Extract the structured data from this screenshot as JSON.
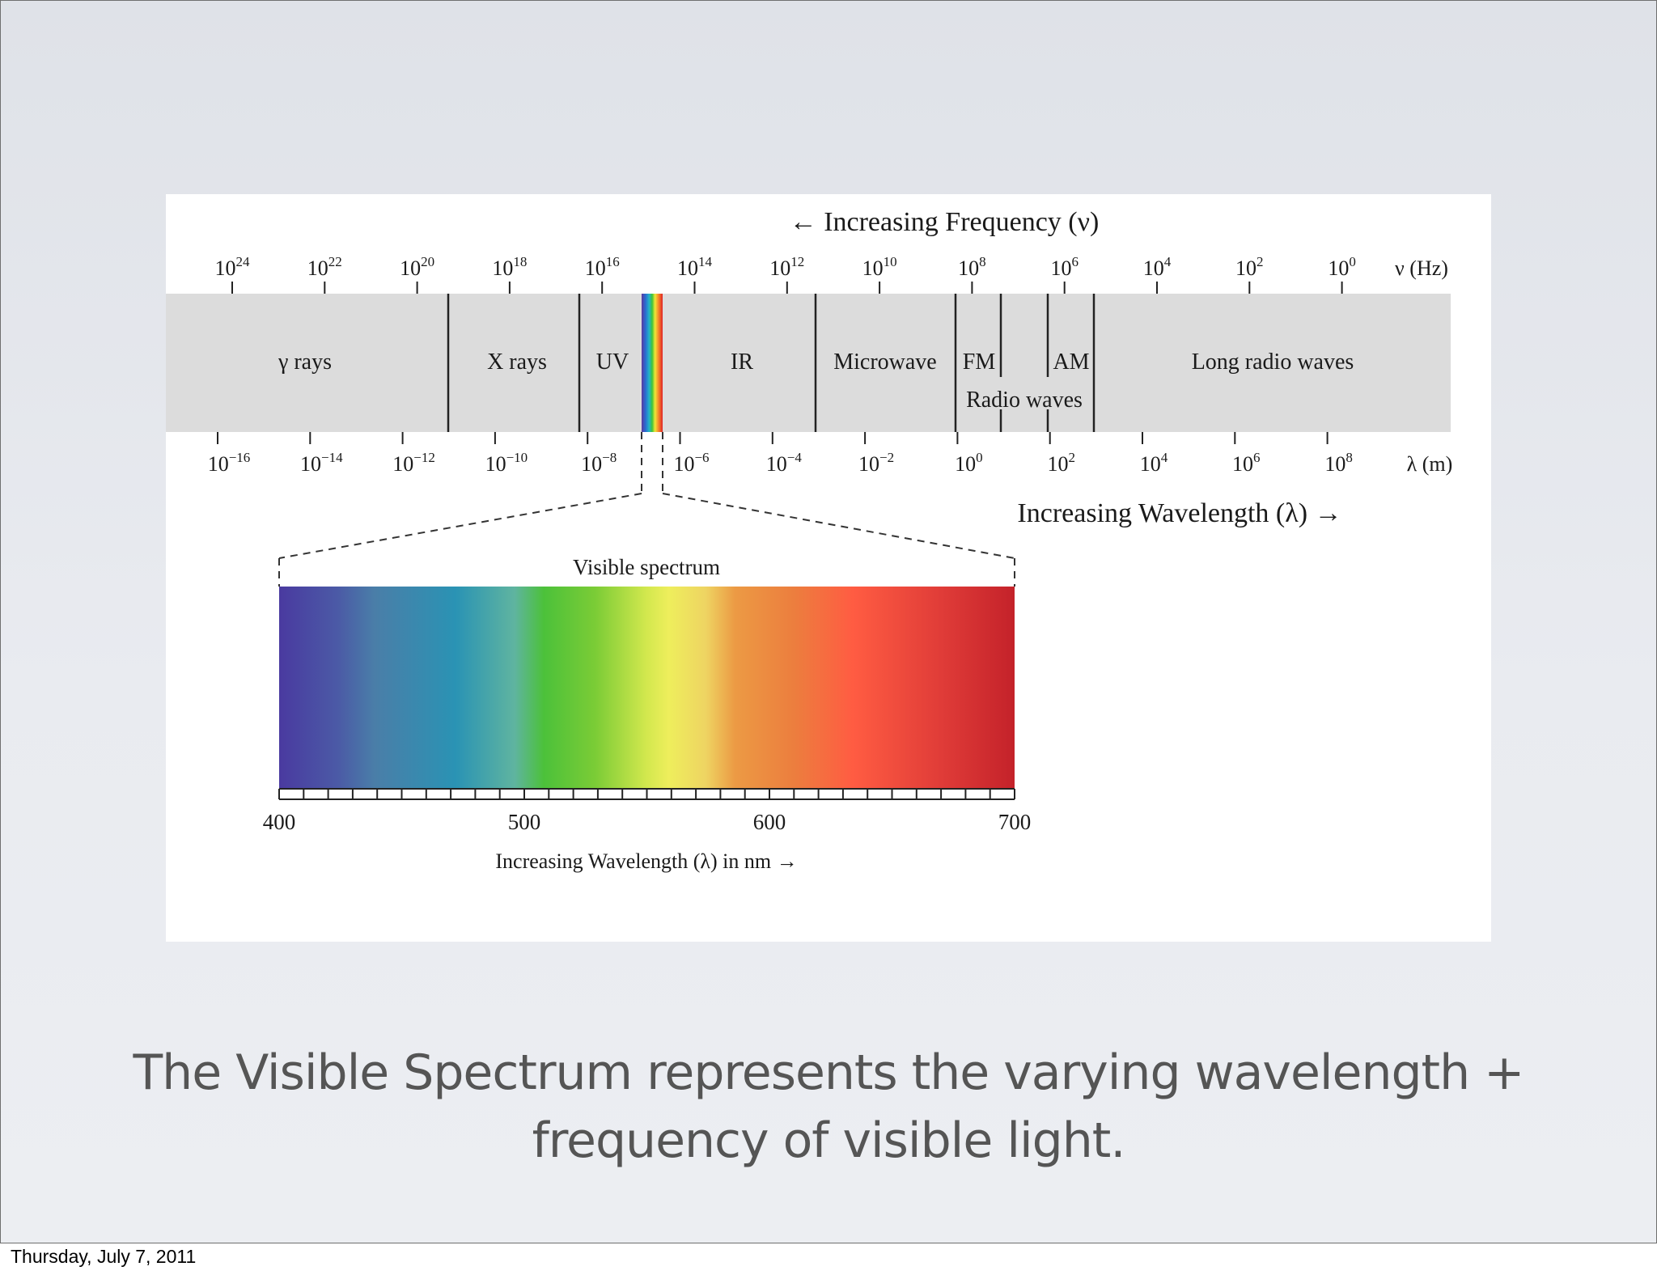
{
  "figure": {
    "frequency_axis": {
      "title": "← Increasing Frequency (ν)",
      "unit": "ν (Hz)",
      "ticks": [
        {
          "base": "10",
          "exp": "24"
        },
        {
          "base": "10",
          "exp": "22"
        },
        {
          "base": "10",
          "exp": "20"
        },
        {
          "base": "10",
          "exp": "18"
        },
        {
          "base": "10",
          "exp": "16"
        },
        {
          "base": "10",
          "exp": "14"
        },
        {
          "base": "10",
          "exp": "12"
        },
        {
          "base": "10",
          "exp": "10"
        },
        {
          "base": "10",
          "exp": "8"
        },
        {
          "base": "10",
          "exp": "6"
        },
        {
          "base": "10",
          "exp": "4"
        },
        {
          "base": "10",
          "exp": "2"
        },
        {
          "base": "10",
          "exp": "0"
        }
      ]
    },
    "wavelength_axis": {
      "title": "Increasing Wavelength (λ) →",
      "unit": "λ (m)",
      "ticks": [
        {
          "base": "10",
          "exp": "−16"
        },
        {
          "base": "10",
          "exp": "−14"
        },
        {
          "base": "10",
          "exp": "−12"
        },
        {
          "base": "10",
          "exp": "−10"
        },
        {
          "base": "10",
          "exp": "−8"
        },
        {
          "base": "10",
          "exp": "−6"
        },
        {
          "base": "10",
          "exp": "−4"
        },
        {
          "base": "10",
          "exp": "−2"
        },
        {
          "base": "10",
          "exp": "0"
        },
        {
          "base": "10",
          "exp": "2"
        },
        {
          "base": "10",
          "exp": "4"
        },
        {
          "base": "10",
          "exp": "6"
        },
        {
          "base": "10",
          "exp": "8"
        }
      ]
    },
    "bands": {
      "gamma": "γ rays",
      "xray": "X rays",
      "uv": "UV",
      "ir": "IR",
      "microwave": "Microwave",
      "fm": "FM",
      "am": "AM",
      "radio": "Radio waves",
      "long_radio": "Long radio waves"
    },
    "visible": {
      "title": "Visible spectrum",
      "xlabel": "Increasing Wavelength (λ) in nm →",
      "range_nm": [
        400,
        700
      ],
      "tick_labels": [
        "400",
        "500",
        "600",
        "700"
      ]
    },
    "colors": {
      "band_fill": "#dcdcdc",
      "violet": "#4a3aa0",
      "blue": "#2a93b4",
      "green": "#5bc431",
      "yellow": "#eeee5c",
      "orange": "#ec8a3a",
      "red": "#c4222a"
    }
  },
  "caption": {
    "line1": "The Visible Spectrum represents the varying wavelength +",
    "line2": "frequency of visible light."
  },
  "footer": {
    "date": "Thursday, July 7, 2011"
  }
}
